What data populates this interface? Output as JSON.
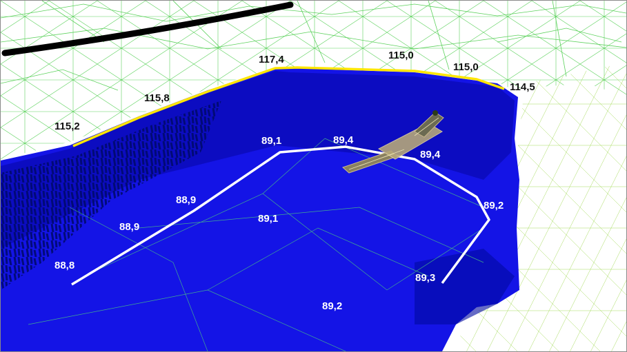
{
  "colors": {
    "mesh": "#5bd15b",
    "water": "#1414e6",
    "water_dark": "#000a8c",
    "crest_line": "#ffe600",
    "bottom_line": "#ffffff",
    "road": "#000000",
    "rim_text": "#111111",
    "pit_text": "#ffffff"
  },
  "icons": [
    "mesh-terrain",
    "pontoon-structure"
  ],
  "crest_labels": [
    "115,2",
    "115,8",
    "117,4",
    "115,0",
    "115,0",
    "114,5"
  ],
  "bottom_labels": [
    "88,8",
    "88,9",
    "88,9",
    "89,1",
    "89,4",
    "89,4",
    "89,2",
    "89,3"
  ],
  "interior_labels": [
    "89,1",
    "89,2"
  ]
}
